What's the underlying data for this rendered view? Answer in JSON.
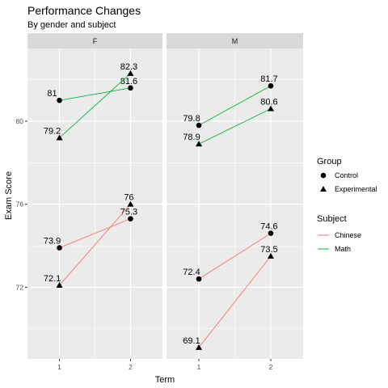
{
  "chart_data": {
    "type": "line",
    "title": "Performance Changes",
    "subtitle": "By gender and subject",
    "xlabel": "Term",
    "ylabel": "Exam Score",
    "x": [
      1,
      2
    ],
    "xlim": [
      0.55,
      2.45
    ],
    "ylim": [
      68.55,
      83.5
    ],
    "yticks": [
      72,
      76,
      80
    ],
    "grid": true,
    "panels": [
      "F",
      "M"
    ],
    "legend_position": "right",
    "legends": {
      "group": {
        "title": "Group",
        "items": [
          {
            "label": "Control",
            "shape": "circle"
          },
          {
            "label": "Experimental",
            "shape": "triangle"
          }
        ]
      },
      "subject": {
        "title": "Subject",
        "items": [
          {
            "label": "Chinese",
            "color": "#f8766d"
          },
          {
            "label": "Math",
            "color": "#00ba38"
          }
        ]
      }
    },
    "series": [
      {
        "panel": "F",
        "subject": "Math",
        "group": "Control",
        "values": [
          81,
          81.6
        ],
        "color": "#00ba38",
        "shape": "circle"
      },
      {
        "panel": "F",
        "subject": "Math",
        "group": "Experimental",
        "values": [
          79.2,
          82.3
        ],
        "color": "#00ba38",
        "shape": "triangle"
      },
      {
        "panel": "F",
        "subject": "Chinese",
        "group": "Control",
        "values": [
          73.9,
          75.3
        ],
        "color": "#f8766d",
        "shape": "circle"
      },
      {
        "panel": "F",
        "subject": "Chinese",
        "group": "Experimental",
        "values": [
          72.1,
          76
        ],
        "color": "#f8766d",
        "shape": "triangle"
      },
      {
        "panel": "M",
        "subject": "Math",
        "group": "Control",
        "values": [
          79.8,
          81.7
        ],
        "color": "#00ba38",
        "shape": "circle"
      },
      {
        "panel": "M",
        "subject": "Math",
        "group": "Experimental",
        "values": [
          78.9,
          80.6
        ],
        "color": "#00ba38",
        "shape": "triangle"
      },
      {
        "panel": "M",
        "subject": "Chinese",
        "group": "Control",
        "values": [
          72.4,
          74.6
        ],
        "color": "#f8766d",
        "shape": "circle"
      },
      {
        "panel": "M",
        "subject": "Chinese",
        "group": "Experimental",
        "values": [
          69.1,
          73.5
        ],
        "color": "#f8766d",
        "shape": "triangle"
      }
    ]
  }
}
